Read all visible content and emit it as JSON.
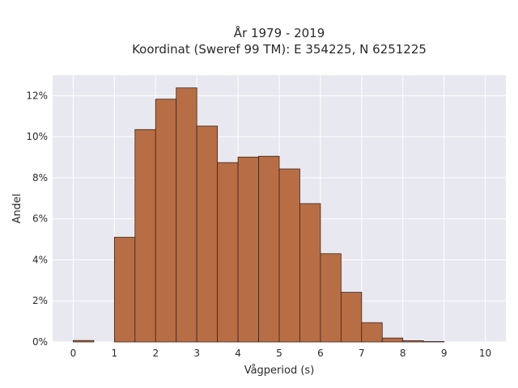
{
  "chart_data": {
    "type": "bar",
    "title_lines": [
      "År 1979 - 2019",
      "Koordinat (Sweref 99 TM): E 354225, N 6251225"
    ],
    "xlabel": "Vågperiod (s)",
    "ylabel": "Andel",
    "xlim": [
      -0.5,
      10.5
    ],
    "ylim": [
      0,
      0.13
    ],
    "x_ticks": [
      0,
      1,
      2,
      3,
      4,
      5,
      6,
      7,
      8,
      9,
      10
    ],
    "x_tick_labels": [
      "0",
      "1",
      "2",
      "3",
      "4",
      "5",
      "6",
      "7",
      "8",
      "9",
      "10"
    ],
    "y_ticks": [
      0,
      0.02,
      0.04,
      0.06,
      0.08,
      0.1,
      0.12
    ],
    "y_tick_labels": [
      "0%",
      "2%",
      "4%",
      "6%",
      "8%",
      "10%",
      "12%"
    ],
    "bin_width": 0.5,
    "bins": [
      {
        "start": 0.0,
        "value": 0.0007
      },
      {
        "start": 0.5,
        "value": 0.0
      },
      {
        "start": 1.0,
        "value": 0.051
      },
      {
        "start": 1.5,
        "value": 0.1035
      },
      {
        "start": 2.0,
        "value": 0.1183
      },
      {
        "start": 2.5,
        "value": 0.1238
      },
      {
        "start": 3.0,
        "value": 0.1052
      },
      {
        "start": 3.5,
        "value": 0.0874
      },
      {
        "start": 4.0,
        "value": 0.0901
      },
      {
        "start": 4.5,
        "value": 0.0905
      },
      {
        "start": 5.0,
        "value": 0.0843
      },
      {
        "start": 5.5,
        "value": 0.0674
      },
      {
        "start": 6.0,
        "value": 0.043
      },
      {
        "start": 6.5,
        "value": 0.0242
      },
      {
        "start": 7.0,
        "value": 0.0094
      },
      {
        "start": 7.5,
        "value": 0.0019
      },
      {
        "start": 8.0,
        "value": 0.0006
      },
      {
        "start": 8.5,
        "value": 0.0002
      },
      {
        "start": 9.0,
        "value": 0.0
      },
      {
        "start": 9.5,
        "value": 0.0
      }
    ],
    "grid": true,
    "colors": {
      "bar_fill": "#b86e45",
      "bar_stroke": "#3b2416",
      "plot_bg": "#e8e8f0",
      "grid": "#ffffff",
      "text": "#2a2a2a"
    }
  }
}
